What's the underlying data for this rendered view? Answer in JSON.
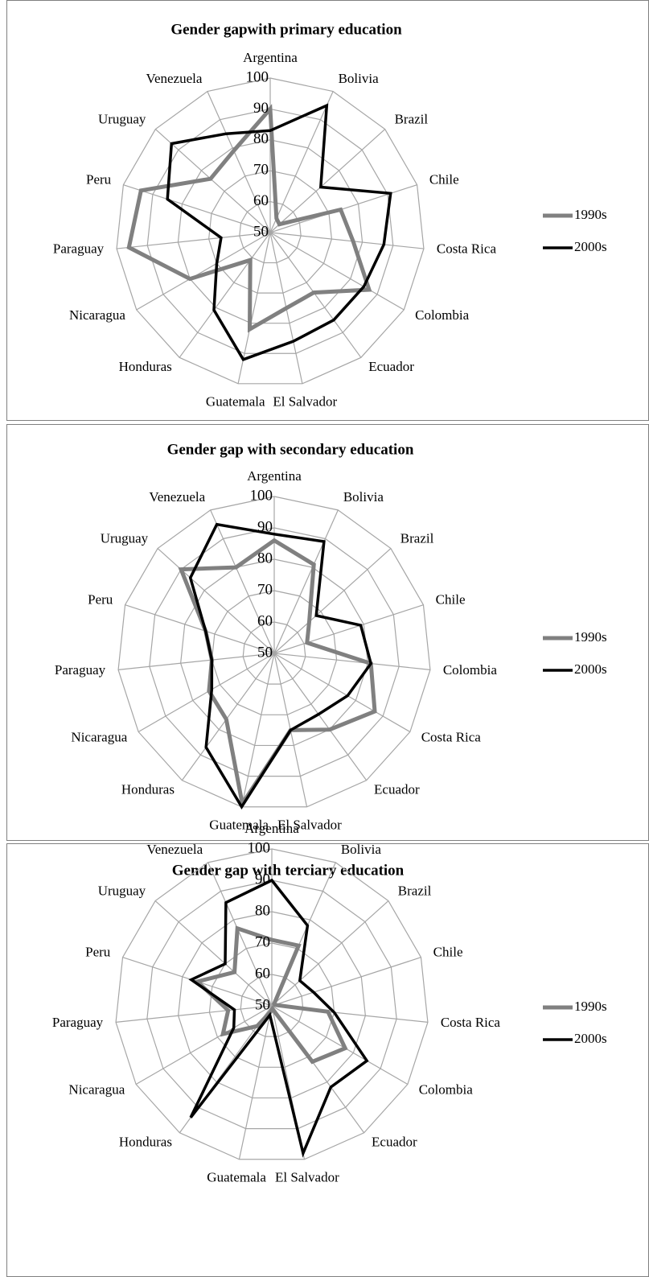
{
  "chart_data": [
    {
      "type": "radar",
      "title": "Gender gapwith primary education",
      "categories": [
        "Argentina",
        "Bolivia",
        "Brazil",
        "Chile",
        "Costa Rica",
        "Colombia",
        "Ecuador",
        "El  Salvador",
        "Guatemala",
        "Honduras",
        "Nicaragua",
        "Paraguay",
        "Peru",
        "Uruguay",
        "Venezuela"
      ],
      "series": [
        {
          "name": "1990s",
          "color": "#808080",
          "values": [
            90,
            55,
            54,
            74,
            77,
            87,
            74,
            75,
            82,
            61,
            80,
            96,
            94,
            76,
            79
          ]
        },
        {
          "name": "2000s",
          "color": "#000000",
          "values": [
            83,
            95,
            72,
            91,
            87,
            85,
            85,
            86,
            92,
            81,
            70,
            66,
            85,
            93,
            85
          ]
        }
      ],
      "ylim": [
        50,
        100
      ],
      "yticks": [
        50,
        60,
        70,
        80,
        90,
        100
      ],
      "grid": true,
      "legend": "right"
    },
    {
      "type": "radar",
      "title": "Gender gap with secondary  education",
      "categories": [
        "Argentina",
        "Bolivia",
        "Brazil",
        "Chile",
        "Colombia",
        "Costa Rica",
        "Ecuador",
        "El Salvador",
        "Guatemala",
        "Honduras",
        "Nicaragua",
        "Paraguay",
        "Peru",
        "Uruguay",
        "Venezuela"
      ],
      "series": [
        {
          "name": "1990s",
          "color": "#808080",
          "values": [
            86,
            81,
            65,
            61,
            81,
            87,
            80,
            75,
            99,
            76,
            74,
            70,
            73,
            90,
            80
          ]
        },
        {
          "name": "2000s",
          "color": "#000000",
          "values": [
            88,
            89,
            68,
            79,
            81,
            77,
            74,
            75,
            100,
            87,
            73,
            70,
            73,
            86,
            95
          ]
        }
      ],
      "ylim": [
        50,
        100
      ],
      "yticks": [
        50,
        60,
        70,
        80,
        90,
        100
      ],
      "grid": true,
      "legend": "right"
    },
    {
      "type": "radar",
      "title": "Gender gap with terciary education",
      "categories": [
        "Argentina",
        "Bolivia",
        "Brazil",
        "Chile",
        "Costa Rica",
        "Colombia",
        "Ecuador",
        "El Salvador",
        "Guatemala",
        "Honduras",
        "Nicaragua",
        "Paraguay",
        "Peru",
        "Uruguay",
        "Venezuela"
      ],
      "series": [
        {
          "name": "1990s",
          "color": "#808080",
          "values": [
            71,
            71,
            51,
            51,
            68,
            77,
            72,
            51,
            52,
            58,
            68,
            64,
            75,
            66,
            77
          ]
        },
        {
          "name": "2000s",
          "color": "#000000",
          "values": [
            90,
            78,
            62,
            64,
            70,
            85,
            82,
            98,
            53,
            94,
            64,
            62,
            77,
            70,
            86
          ]
        }
      ],
      "ylim": [
        50,
        100
      ],
      "yticks": [
        50,
        60,
        70,
        80,
        90,
        100
      ],
      "grid": true,
      "legend": "right"
    }
  ]
}
